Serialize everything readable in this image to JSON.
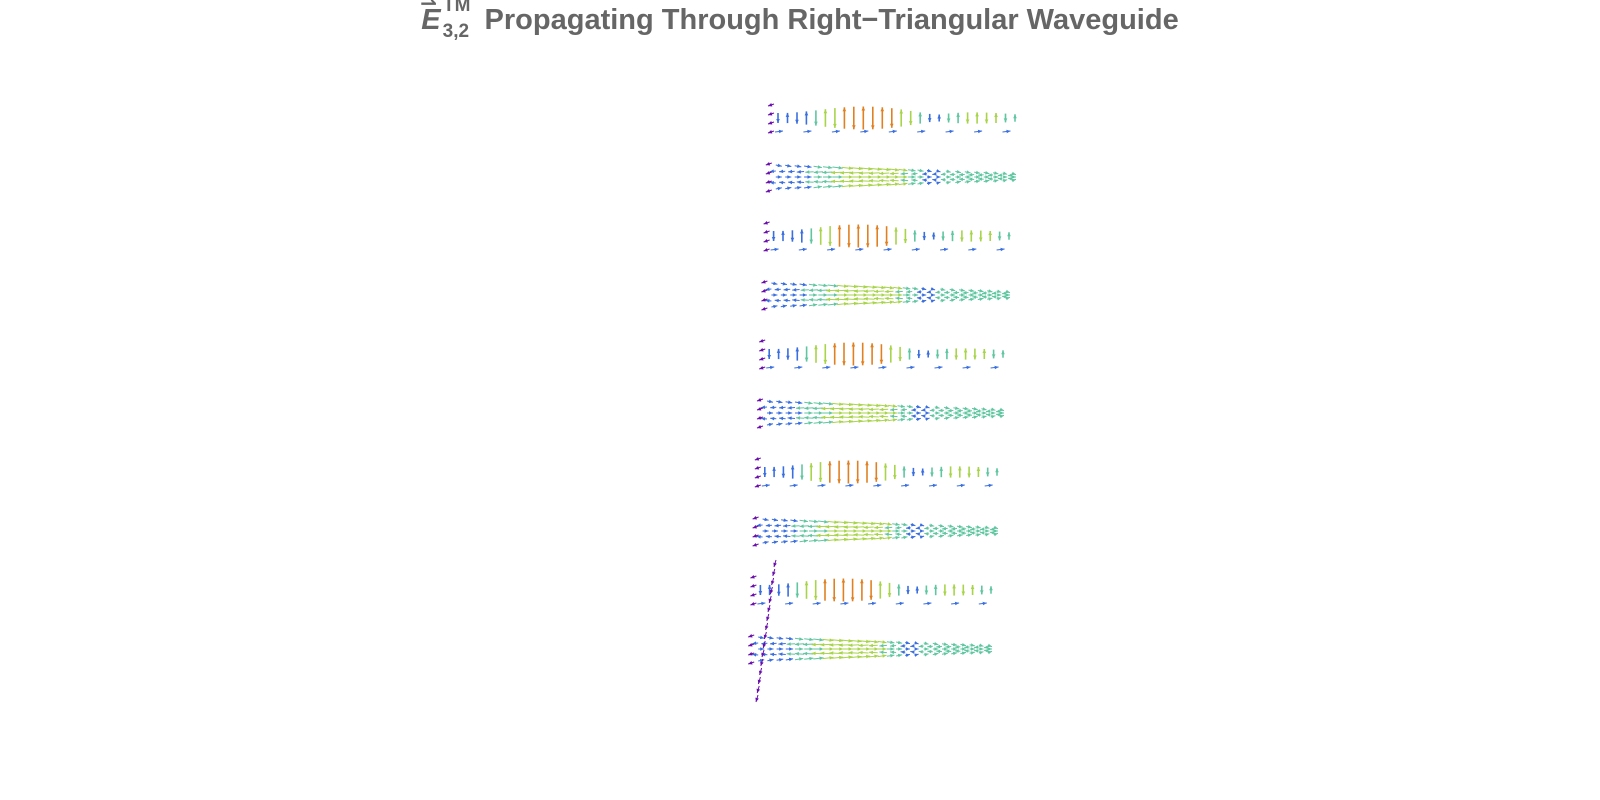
{
  "title": {
    "symbol": "E",
    "vector_mark": "⇀",
    "subscript": "3,2",
    "superscript": "TM",
    "text": "Propagating Through Right−Triangular Waveguide"
  },
  "figure": {
    "type": "3d-vector-field",
    "mode_family": "TM",
    "mode_indices": [
      3,
      2
    ],
    "cross_section_slices": 10,
    "colors": {
      "low": "#6a0dad",
      "mid_low": "#3a6fe0",
      "mid": "#5fc6a0",
      "mid_high": "#a8d44a",
      "high": "#e08020",
      "peak": "#d03020"
    }
  }
}
